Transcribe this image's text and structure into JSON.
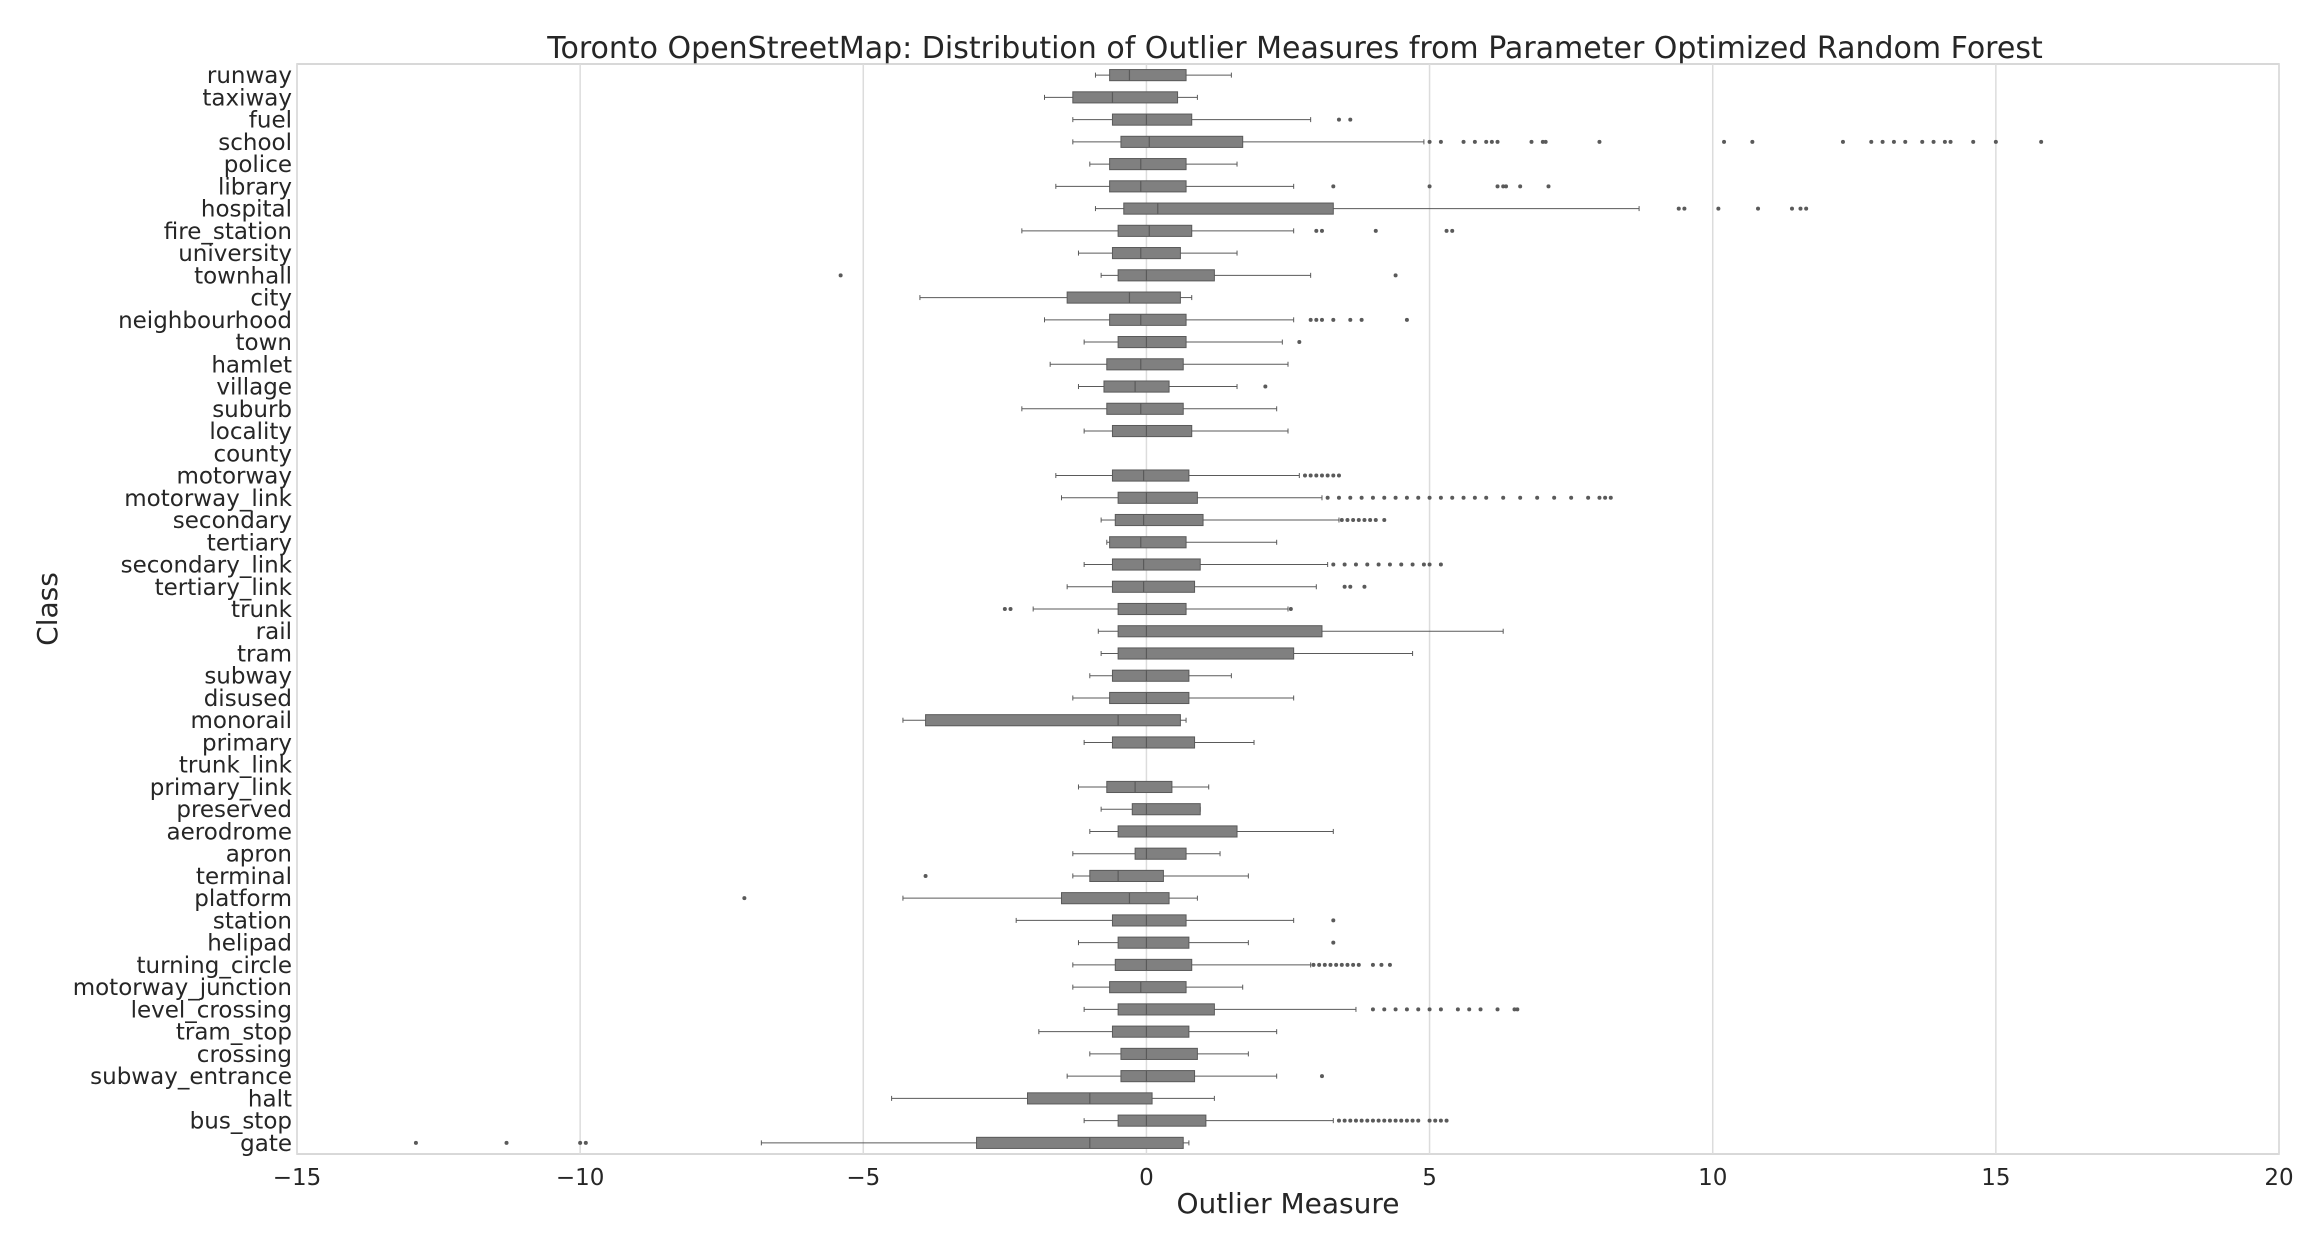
{
  "chart_data": {
    "type": "boxplot",
    "orientation": "horizontal",
    "title": "Toronto OpenStreetMap: Distribution of Outlier Measures from Parameter Optimized Random Forest",
    "xlabel": "Outlier Measure",
    "ylabel": "Class",
    "xlim": [
      -15,
      20
    ],
    "xticks": [
      -15,
      -10,
      -5,
      0,
      5,
      10,
      15,
      20
    ],
    "xtick_labels": [
      "−15",
      "−10",
      "−5",
      "0",
      "5",
      "10",
      "15",
      "20"
    ],
    "grid": "vertical",
    "colors": {
      "box": "#808080",
      "edge": "#5a5a5a",
      "grid": "#dcdcdc",
      "frame": "#cccccc",
      "text": "#262626"
    },
    "categories": [
      "runway",
      "taxiway",
      "fuel",
      "school",
      "police",
      "library",
      "hospital",
      "fire_station",
      "university",
      "townhall",
      "city",
      "neighbourhood",
      "town",
      "hamlet",
      "village",
      "suburb",
      "locality",
      "county",
      "motorway",
      "motorway_link",
      "secondary",
      "tertiary",
      "secondary_link",
      "tertiary_link",
      "trunk",
      "rail",
      "tram",
      "subway",
      "disused",
      "monorail",
      "primary",
      "trunk_link",
      "primary_link",
      "preserved",
      "aerodrome",
      "apron",
      "terminal",
      "platform",
      "station",
      "helipad",
      "turning_circle",
      "motorway_junction",
      "level_crossing",
      "tram_stop",
      "crossing",
      "subway_entrance",
      "halt",
      "bus_stop",
      "gate"
    ],
    "boxes": [
      {
        "class": "runway",
        "whisker_low": -0.9,
        "q1": -0.65,
        "median": -0.3,
        "q3": 0.7,
        "whisker_high": 1.5,
        "outliers": []
      },
      {
        "class": "taxiway",
        "whisker_low": -1.8,
        "q1": -1.3,
        "median": -0.6,
        "q3": 0.55,
        "whisker_high": 0.9,
        "outliers": []
      },
      {
        "class": "fuel",
        "whisker_low": -1.3,
        "q1": -0.6,
        "median": 0.0,
        "q3": 0.8,
        "whisker_high": 2.9,
        "outliers": [
          3.4,
          3.6
        ]
      },
      {
        "class": "school",
        "whisker_low": -1.3,
        "q1": -0.45,
        "median": 0.05,
        "q3": 1.7,
        "whisker_high": 4.9,
        "outliers": [
          5.0,
          5.2,
          5.6,
          5.8,
          6.0,
          6.1,
          6.2,
          6.8,
          7.0,
          7.05,
          8.0,
          10.2,
          10.7,
          12.3,
          12.8,
          13.0,
          13.2,
          13.4,
          13.7,
          13.9,
          14.1,
          14.2,
          14.6,
          15.0,
          15.8
        ]
      },
      {
        "class": "police",
        "whisker_low": -1.0,
        "q1": -0.65,
        "median": -0.1,
        "q3": 0.7,
        "whisker_high": 1.6,
        "outliers": []
      },
      {
        "class": "library",
        "whisker_low": -1.6,
        "q1": -0.65,
        "median": -0.1,
        "q3": 0.7,
        "whisker_high": 2.6,
        "outliers": [
          3.3,
          5.0,
          6.2,
          6.3,
          6.35,
          6.6,
          7.1
        ]
      },
      {
        "class": "hospital",
        "whisker_low": -0.9,
        "q1": -0.4,
        "median": 0.2,
        "q3": 3.3,
        "whisker_high": 8.7,
        "outliers": [
          9.4,
          9.5,
          10.1,
          10.8,
          11.4,
          11.55,
          11.65
        ]
      },
      {
        "class": "fire_station",
        "whisker_low": -2.2,
        "q1": -0.5,
        "median": 0.05,
        "q3": 0.8,
        "whisker_high": 2.6,
        "outliers": [
          3.0,
          3.1,
          4.05,
          5.3,
          5.4
        ]
      },
      {
        "class": "university",
        "whisker_low": -1.2,
        "q1": -0.6,
        "median": -0.1,
        "q3": 0.6,
        "whisker_high": 1.6,
        "outliers": []
      },
      {
        "class": "townhall",
        "whisker_low": -0.8,
        "q1": -0.5,
        "median": 0.0,
        "q3": 1.2,
        "whisker_high": 2.9,
        "outliers": [
          -5.4,
          4.4
        ]
      },
      {
        "class": "city",
        "whisker_low": -4.0,
        "q1": -1.4,
        "median": -0.3,
        "q3": 0.6,
        "whisker_high": 0.8,
        "outliers": []
      },
      {
        "class": "neighbourhood",
        "whisker_low": -1.8,
        "q1": -0.65,
        "median": -0.1,
        "q3": 0.7,
        "whisker_high": 2.6,
        "outliers": [
          2.9,
          3.0,
          3.1,
          3.3,
          3.6,
          3.8,
          4.6
        ]
      },
      {
        "class": "town",
        "whisker_low": -1.1,
        "q1": -0.5,
        "median": 0.0,
        "q3": 0.7,
        "whisker_high": 2.4,
        "outliers": [
          2.7
        ]
      },
      {
        "class": "hamlet",
        "whisker_low": -1.7,
        "q1": -0.7,
        "median": -0.1,
        "q3": 0.65,
        "whisker_high": 2.5,
        "outliers": []
      },
      {
        "class": "village",
        "whisker_low": -1.2,
        "q1": -0.75,
        "median": -0.2,
        "q3": 0.4,
        "whisker_high": 1.6,
        "outliers": [
          2.1
        ]
      },
      {
        "class": "suburb",
        "whisker_low": -2.2,
        "q1": -0.7,
        "median": -0.1,
        "q3": 0.65,
        "whisker_high": 2.3,
        "outliers": []
      },
      {
        "class": "locality",
        "whisker_low": -1.1,
        "q1": -0.6,
        "median": 0.0,
        "q3": 0.8,
        "whisker_high": 2.5,
        "outliers": []
      },
      {
        "class": "county",
        "whisker_low": null,
        "q1": null,
        "median": null,
        "q3": null,
        "whisker_high": null,
        "outliers": []
      },
      {
        "class": "motorway",
        "whisker_low": -1.6,
        "q1": -0.6,
        "median": -0.05,
        "q3": 0.75,
        "whisker_high": 2.7,
        "outliers": [
          2.8,
          2.9,
          3.0,
          3.1,
          3.2,
          3.3,
          3.4
        ]
      },
      {
        "class": "motorway_link",
        "whisker_low": -1.5,
        "q1": -0.5,
        "median": 0.0,
        "q3": 0.9,
        "whisker_high": 3.1,
        "outliers": [
          3.2,
          3.4,
          3.6,
          3.8,
          4.0,
          4.2,
          4.4,
          4.6,
          4.8,
          5.0,
          5.2,
          5.4,
          5.6,
          5.8,
          6.0,
          6.3,
          6.6,
          6.9,
          7.2,
          7.5,
          7.8,
          8.0,
          8.1,
          8.2
        ]
      },
      {
        "class": "secondary",
        "whisker_low": -0.8,
        "q1": -0.55,
        "median": -0.05,
        "q3": 1.0,
        "whisker_high": 3.4,
        "outliers": [
          3.45,
          3.55,
          3.65,
          3.75,
          3.85,
          3.95,
          4.05,
          4.2
        ]
      },
      {
        "class": "tertiary",
        "whisker_low": -0.7,
        "q1": -0.65,
        "median": -0.1,
        "q3": 0.7,
        "whisker_high": 2.3,
        "outliers": []
      },
      {
        "class": "secondary_link",
        "whisker_low": -1.1,
        "q1": -0.6,
        "median": -0.05,
        "q3": 0.95,
        "whisker_high": 3.2,
        "outliers": [
          3.3,
          3.5,
          3.7,
          3.9,
          4.1,
          4.3,
          4.5,
          4.7,
          4.9,
          5.0,
          5.2
        ]
      },
      {
        "class": "tertiary_link",
        "whisker_low": -1.4,
        "q1": -0.6,
        "median": -0.05,
        "q3": 0.85,
        "whisker_high": 3.0,
        "outliers": [
          3.5,
          3.6,
          3.85
        ]
      },
      {
        "class": "trunk",
        "whisker_low": -2.0,
        "q1": -0.5,
        "median": 0.0,
        "q3": 0.7,
        "whisker_high": 2.5,
        "outliers": [
          -2.5,
          -2.4,
          2.55
        ]
      },
      {
        "class": "rail",
        "whisker_low": -0.85,
        "q1": -0.5,
        "median": 0.0,
        "q3": 3.1,
        "whisker_high": 6.3,
        "outliers": []
      },
      {
        "class": "tram",
        "whisker_low": -0.8,
        "q1": -0.5,
        "median": 0.0,
        "q3": 2.6,
        "whisker_high": 4.7,
        "outliers": []
      },
      {
        "class": "subway",
        "whisker_low": -1.0,
        "q1": -0.6,
        "median": 0.0,
        "q3": 0.75,
        "whisker_high": 1.5,
        "outliers": []
      },
      {
        "class": "disused",
        "whisker_low": -1.3,
        "q1": -0.65,
        "median": 0.0,
        "q3": 0.75,
        "whisker_high": 2.6,
        "outliers": []
      },
      {
        "class": "monorail",
        "whisker_low": -4.3,
        "q1": -3.9,
        "median": -0.5,
        "q3": 0.6,
        "whisker_high": 0.7,
        "outliers": []
      },
      {
        "class": "primary",
        "whisker_low": -1.1,
        "q1": -0.6,
        "median": 0.0,
        "q3": 0.85,
        "whisker_high": 1.9,
        "outliers": []
      },
      {
        "class": "trunk_link",
        "whisker_low": null,
        "q1": null,
        "median": null,
        "q3": null,
        "whisker_high": null,
        "outliers": []
      },
      {
        "class": "primary_link",
        "whisker_low": -1.2,
        "q1": -0.7,
        "median": -0.2,
        "q3": 0.45,
        "whisker_high": 1.1,
        "outliers": []
      },
      {
        "class": "preserved",
        "whisker_low": -0.8,
        "q1": -0.25,
        "median": 0.0,
        "q3": 0.95,
        "whisker_high": 0.95,
        "outliers": []
      },
      {
        "class": "aerodrome",
        "whisker_low": -1.0,
        "q1": -0.5,
        "median": 0.0,
        "q3": 1.6,
        "whisker_high": 3.3,
        "outliers": []
      },
      {
        "class": "apron",
        "whisker_low": -1.3,
        "q1": -0.2,
        "median": 0.0,
        "q3": 0.7,
        "whisker_high": 1.3,
        "outliers": []
      },
      {
        "class": "terminal",
        "whisker_low": -1.3,
        "q1": -1.0,
        "median": -0.5,
        "q3": 0.3,
        "whisker_high": 1.8,
        "outliers": [
          -3.9
        ]
      },
      {
        "class": "platform",
        "whisker_low": -4.3,
        "q1": -1.5,
        "median": -0.3,
        "q3": 0.4,
        "whisker_high": 0.9,
        "outliers": [
          -7.1
        ]
      },
      {
        "class": "station",
        "whisker_low": -2.3,
        "q1": -0.6,
        "median": 0.0,
        "q3": 0.7,
        "whisker_high": 2.6,
        "outliers": [
          3.3
        ]
      },
      {
        "class": "helipad",
        "whisker_low": -1.2,
        "q1": -0.5,
        "median": 0.0,
        "q3": 0.75,
        "whisker_high": 1.8,
        "outliers": [
          3.3
        ]
      },
      {
        "class": "turning_circle",
        "whisker_low": -1.3,
        "q1": -0.55,
        "median": 0.0,
        "q3": 0.8,
        "whisker_high": 2.9,
        "outliers": [
          2.95,
          3.05,
          3.15,
          3.25,
          3.35,
          3.45,
          3.55,
          3.65,
          3.75,
          4.0,
          4.15,
          4.3
        ]
      },
      {
        "class": "motorway_junction",
        "whisker_low": -1.3,
        "q1": -0.65,
        "median": -0.1,
        "q3": 0.7,
        "whisker_high": 1.7,
        "outliers": []
      },
      {
        "class": "level_crossing",
        "whisker_low": -1.1,
        "q1": -0.5,
        "median": 0.0,
        "q3": 1.2,
        "whisker_high": 3.7,
        "outliers": [
          4.0,
          4.2,
          4.4,
          4.6,
          4.8,
          5.0,
          5.2,
          5.5,
          5.7,
          5.9,
          6.2,
          6.5,
          6.55
        ]
      },
      {
        "class": "tram_stop",
        "whisker_low": -1.9,
        "q1": -0.6,
        "median": 0.0,
        "q3": 0.75,
        "whisker_high": 2.3,
        "outliers": []
      },
      {
        "class": "crossing",
        "whisker_low": -1.0,
        "q1": -0.45,
        "median": 0.0,
        "q3": 0.9,
        "whisker_high": 1.8,
        "outliers": []
      },
      {
        "class": "subway_entrance",
        "whisker_low": -1.4,
        "q1": -0.45,
        "median": 0.0,
        "q3": 0.85,
        "whisker_high": 2.3,
        "outliers": [
          3.1
        ]
      },
      {
        "class": "halt",
        "whisker_low": -4.5,
        "q1": -2.1,
        "median": -1.0,
        "q3": 0.1,
        "whisker_high": 1.2,
        "outliers": []
      },
      {
        "class": "bus_stop",
        "whisker_low": -1.1,
        "q1": -0.5,
        "median": 0.0,
        "q3": 1.05,
        "whisker_high": 3.3,
        "outliers": [
          3.4,
          3.5,
          3.6,
          3.7,
          3.8,
          3.9,
          4.0,
          4.1,
          4.2,
          4.3,
          4.4,
          4.5,
          4.6,
          4.7,
          4.8,
          5.0,
          5.1,
          5.2,
          5.3
        ]
      },
      {
        "class": "gate",
        "whisker_low": -6.8,
        "q1": -3.0,
        "median": -1.0,
        "q3": 0.65,
        "whisker_high": 0.75,
        "outliers": [
          -12.9,
          -11.3,
          -10.0,
          -9.9
        ]
      }
    ]
  }
}
